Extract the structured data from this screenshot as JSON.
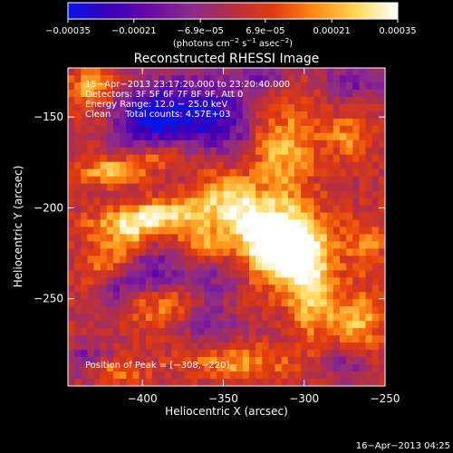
{
  "chart_data": {
    "type": "heatmap",
    "title": "Reconstructed RHESSI Image",
    "xlabel": "Heliocentric X (arcsec)",
    "ylabel": "Heliocentric Y (arcsec)",
    "xlim": [
      -446,
      -250
    ],
    "ylim": [
      -298,
      -123
    ],
    "xticks": [
      -400,
      -350,
      -300,
      -250
    ],
    "xtick_labels": [
      "−400",
      "−350",
      "−300",
      "−250"
    ],
    "yticks": [
      -150,
      -200,
      -250
    ],
    "ytick_labels": [
      "−150",
      "−200",
      "−250"
    ],
    "colorbar": {
      "range": [
        -0.00035,
        0.00035
      ],
      "ticks": [
        -0.00035,
        -0.00021,
        -6.9e-05,
        6.9e-05,
        0.00021,
        0.00035
      ],
      "tick_labels": [
        "−0.00035",
        "−0.00021",
        "−6.9e−05",
        "6.9e−05",
        "0.00021",
        "0.00035"
      ],
      "unit_main": "(photons cm",
      "unit_sup1": "−2",
      "unit_mid": " s",
      "unit_sup2": "−1",
      "unit_tail": " asec",
      "unit_sup3": "−2",
      "unit_close": ")",
      "colors": [
        "#0a14e8",
        "#3a00b8",
        "#6a0aa8",
        "#8c2c8c",
        "#b52f42",
        "#e23b0e",
        "#ff8c14",
        "#ffd85a",
        "#ffffff"
      ]
    },
    "peak": [
      -308,
      -220
    ],
    "annotations": [
      "15−Apr−2013 23:17:20.000 to 23:20:40.000",
      "Detectors: 3F 5F 6F 7F 8F 9F, Att 0",
      "Energy Range: 12.0 − 25.0 keV",
      "Clean     Total counts: 4.57E+03"
    ],
    "peak_label": "Position of Peak = [−308,−220]",
    "timestamp": "16−Apr−2013 04:25",
    "features": [
      {
        "x": -330,
        "y": -210,
        "sx": 28,
        "sy": 12,
        "amp": 0.95,
        "rot": -0.75
      },
      {
        "x": -308,
        "y": -220,
        "sx": 16,
        "sy": 14,
        "amp": 0.8,
        "rot": 0
      },
      {
        "x": -296,
        "y": -245,
        "sx": 10,
        "sy": 22,
        "amp": 0.5,
        "rot": 0
      },
      {
        "x": -320,
        "y": -166,
        "sx": 10,
        "sy": 22,
        "amp": 0.55,
        "rot": 0.3
      },
      {
        "x": -302,
        "y": -158,
        "sx": 10,
        "sy": 18,
        "amp": 0.4,
        "rot": 0
      },
      {
        "x": -395,
        "y": -205,
        "sx": 26,
        "sy": 6,
        "amp": 0.8,
        "rot": 0.15
      },
      {
        "x": -365,
        "y": -218,
        "sx": 10,
        "sy": 8,
        "amp": 0.55,
        "rot": 0
      },
      {
        "x": -415,
        "y": -225,
        "sx": 18,
        "sy": 8,
        "amp": 0.55,
        "rot": 0.6
      },
      {
        "x": -420,
        "y": -180,
        "sx": 14,
        "sy": 5,
        "amp": 0.6,
        "rot": 0
      },
      {
        "x": -390,
        "y": -172,
        "sx": 14,
        "sy": 5,
        "amp": 0.5,
        "rot": 0.2
      },
      {
        "x": -432,
        "y": -135,
        "sx": 10,
        "sy": 8,
        "amp": 0.6,
        "rot": 0
      },
      {
        "x": -385,
        "y": -255,
        "sx": 16,
        "sy": 8,
        "amp": 0.5,
        "rot": 0
      },
      {
        "x": -268,
        "y": -263,
        "sx": 12,
        "sy": 12,
        "amp": 0.6,
        "rot": 0
      },
      {
        "x": -262,
        "y": -220,
        "sx": 8,
        "sy": 10,
        "amp": 0.45,
        "rot": 0
      },
      {
        "x": -272,
        "y": -160,
        "sx": 10,
        "sy": 8,
        "amp": 0.45,
        "rot": 0
      },
      {
        "x": -340,
        "y": -285,
        "sx": 22,
        "sy": 6,
        "amp": 0.5,
        "rot": 0
      },
      {
        "x": -420,
        "y": -290,
        "sx": 14,
        "sy": 5,
        "amp": 0.45,
        "rot": 0
      },
      {
        "x": -365,
        "y": -150,
        "sx": 28,
        "sy": 16,
        "amp": -0.9,
        "rot": 0
      },
      {
        "x": -398,
        "y": -150,
        "sx": 14,
        "sy": 10,
        "amp": -0.6,
        "rot": 0
      },
      {
        "x": -395,
        "y": -235,
        "sx": 16,
        "sy": 10,
        "amp": -0.55,
        "rot": 0
      },
      {
        "x": -362,
        "y": -262,
        "sx": 14,
        "sy": 8,
        "amp": -0.45,
        "rot": 0
      },
      {
        "x": -355,
        "y": -240,
        "sx": 10,
        "sy": 8,
        "amp": -0.35,
        "rot": 0
      },
      {
        "x": -435,
        "y": -285,
        "sx": 10,
        "sy": 8,
        "amp": -0.45,
        "rot": 0
      },
      {
        "x": -325,
        "y": -128,
        "sx": 10,
        "sy": 6,
        "amp": -0.4,
        "rot": 0
      },
      {
        "x": -270,
        "y": -130,
        "sx": 14,
        "sy": 8,
        "amp": -0.45,
        "rot": 0
      },
      {
        "x": -275,
        "y": -285,
        "sx": 12,
        "sy": 8,
        "amp": -0.4,
        "rot": 0
      },
      {
        "x": -420,
        "y": -245,
        "sx": 8,
        "sy": 6,
        "amp": -0.35,
        "rot": 0
      }
    ]
  }
}
